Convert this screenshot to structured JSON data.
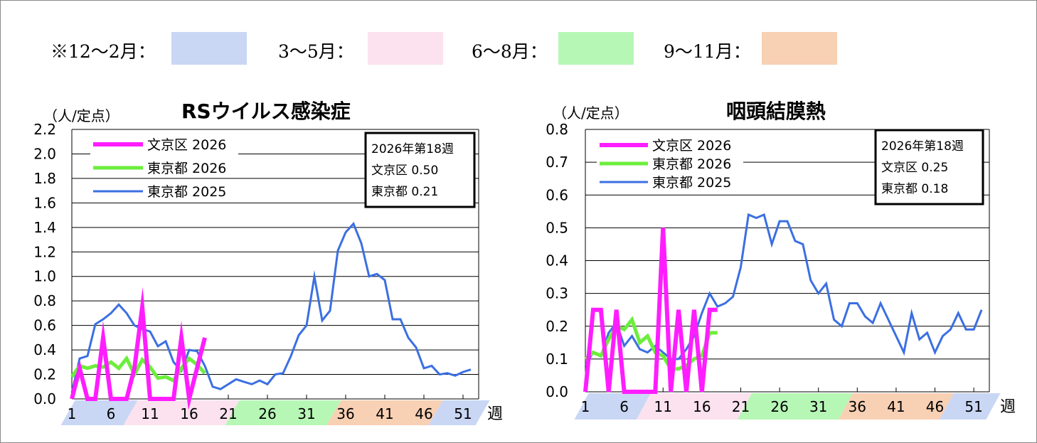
{
  "season_legend": [
    {
      "label": "※12～2月：",
      "color": "#c9d7f5"
    },
    {
      "label": "3～5月：",
      "color": "#fbe2ee"
    },
    {
      "label": "6～8月：",
      "color": "#b7f7b6"
    },
    {
      "label": "9～11月：",
      "color": "#f8d0b4"
    }
  ],
  "week_unit": "週",
  "chart_data": [
    {
      "type": "line",
      "title": "RSウイルス感染症",
      "ylabel": "（人/定点）",
      "ylim": [
        0,
        2.2
      ],
      "yticks": [
        "0.0",
        "0.2",
        "0.4",
        "0.6",
        "0.8",
        "1.0",
        "1.2",
        "1.4",
        "1.6",
        "1.8",
        "2.0",
        "2.2"
      ],
      "xlim": [
        1,
        53
      ],
      "xticks": [
        1,
        6,
        11,
        16,
        21,
        26,
        31,
        36,
        41,
        46,
        51
      ],
      "season_bands": [
        {
          "from": 1,
          "to": 8,
          "season": 0
        },
        {
          "from": 9,
          "to": 21,
          "season": 1
        },
        {
          "from": 22,
          "to": 34,
          "season": 2
        },
        {
          "from": 35,
          "to": 47,
          "season": 3
        },
        {
          "from": 48,
          "to": 53,
          "season": 0
        }
      ],
      "info_box": [
        "2026年第18週",
        "文京区  0.50",
        "東京都  0.21"
      ],
      "series": [
        {
          "name": "文京区 2026",
          "color": "#ff1dff",
          "width": 6,
          "x": [
            1,
            2,
            3,
            4,
            5,
            6,
            7,
            8,
            9,
            10,
            11,
            12,
            13,
            14,
            15,
            16,
            17,
            18
          ],
          "y": [
            0,
            0.25,
            0,
            0,
            0.5,
            0,
            0,
            0,
            0.25,
            0.75,
            0,
            0,
            0,
            0,
            0.5,
            0,
            0.25,
            0.5
          ]
        },
        {
          "name": "東京都 2026",
          "color": "#6cee3c",
          "width": 5,
          "x": [
            1,
            2,
            3,
            4,
            5,
            6,
            7,
            8,
            9,
            10,
            11,
            12,
            13,
            14,
            15,
            16,
            17,
            18
          ],
          "y": [
            0.18,
            0.27,
            0.25,
            0.27,
            0.26,
            0.3,
            0.25,
            0.33,
            0.2,
            0.32,
            0.26,
            0.17,
            0.18,
            0.15,
            0.25,
            0.33,
            0.28,
            0.21
          ]
        },
        {
          "name": "東京都 2025",
          "color": "#3b6fe2",
          "width": 3,
          "x": [
            1,
            2,
            3,
            4,
            5,
            6,
            7,
            8,
            9,
            10,
            11,
            12,
            13,
            14,
            15,
            16,
            17,
            18,
            19,
            20,
            21,
            22,
            23,
            24,
            25,
            26,
            27,
            28,
            29,
            30,
            31,
            32,
            33,
            34,
            35,
            36,
            37,
            38,
            39,
            40,
            41,
            42,
            43,
            44,
            45,
            46,
            47,
            48,
            49,
            50,
            51,
            52
          ],
          "y": [
            0.05,
            0.33,
            0.35,
            0.61,
            0.65,
            0.7,
            0.77,
            0.7,
            0.6,
            0.57,
            0.55,
            0.43,
            0.47,
            0.3,
            0.23,
            0.4,
            0.39,
            0.27,
            0.1,
            0.08,
            0.12,
            0.16,
            0.14,
            0.12,
            0.15,
            0.12,
            0.2,
            0.21,
            0.35,
            0.52,
            0.6,
            1.0,
            0.64,
            0.72,
            1.21,
            1.36,
            1.43,
            1.27,
            1.0,
            1.02,
            0.97,
            0.65,
            0.65,
            0.5,
            0.42,
            0.25,
            0.27,
            0.2,
            0.21,
            0.19,
            0.22,
            0.24
          ]
        }
      ]
    },
    {
      "type": "line",
      "title": "咽頭結膜熱",
      "ylabel": "（人/定点）",
      "ylim": [
        0,
        0.8
      ],
      "yticks": [
        "0.0",
        "0.1",
        "0.2",
        "0.3",
        "0.4",
        "0.5",
        "0.6",
        "0.7",
        "0.8"
      ],
      "xlim": [
        1,
        53
      ],
      "xticks": [
        1,
        6,
        11,
        16,
        21,
        26,
        31,
        36,
        41,
        46,
        51
      ],
      "season_bands": [
        {
          "from": 1,
          "to": 8,
          "season": 0
        },
        {
          "from": 9,
          "to": 21,
          "season": 1
        },
        {
          "from": 22,
          "to": 34,
          "season": 2
        },
        {
          "from": 35,
          "to": 47,
          "season": 3
        },
        {
          "from": 48,
          "to": 53,
          "season": 0
        }
      ],
      "info_box": [
        "2026年第18週",
        "文京区  0.25",
        "東京都  0.18"
      ],
      "series": [
        {
          "name": "文京区 2026",
          "color": "#ff1dff",
          "width": 6,
          "x": [
            1,
            2,
            3,
            4,
            5,
            6,
            7,
            8,
            9,
            10,
            11,
            12,
            13,
            14,
            15,
            16,
            17,
            18
          ],
          "y": [
            0,
            0.25,
            0.25,
            0,
            0.25,
            0,
            0,
            0,
            0,
            0,
            0.5,
            0,
            0.25,
            0,
            0.25,
            0,
            0.25,
            0.25
          ]
        },
        {
          "name": "東京都 2026",
          "color": "#6cee3c",
          "width": 5,
          "x": [
            1,
            2,
            3,
            4,
            5,
            6,
            7,
            8,
            9,
            10,
            11,
            12,
            13,
            14,
            15,
            16,
            17,
            18
          ],
          "y": [
            0.1,
            0.12,
            0.11,
            0.16,
            0.2,
            0.19,
            0.22,
            0.15,
            0.17,
            0.12,
            0.11,
            0.07,
            0.07,
            0.08,
            0.1,
            0.11,
            0.18,
            0.18
          ]
        },
        {
          "name": "東京都 2025",
          "color": "#3b6fe2",
          "width": 3,
          "x": [
            1,
            2,
            3,
            4,
            5,
            6,
            7,
            8,
            9,
            10,
            11,
            12,
            13,
            14,
            15,
            16,
            17,
            18,
            19,
            20,
            21,
            22,
            23,
            24,
            25,
            26,
            27,
            28,
            29,
            30,
            31,
            32,
            33,
            34,
            35,
            36,
            37,
            38,
            39,
            40,
            41,
            42,
            43,
            44,
            45,
            46,
            47,
            48,
            49,
            50,
            51,
            52
          ],
          "y": [
            0.08,
            0.12,
            0.11,
            0.18,
            0.21,
            0.14,
            0.17,
            0.13,
            0.12,
            0.14,
            0.12,
            0.1,
            0.1,
            0.13,
            0.17,
            0.24,
            0.3,
            0.26,
            0.27,
            0.29,
            0.38,
            0.54,
            0.53,
            0.54,
            0.45,
            0.52,
            0.52,
            0.46,
            0.45,
            0.34,
            0.3,
            0.33,
            0.22,
            0.2,
            0.27,
            0.27,
            0.23,
            0.21,
            0.27,
            0.22,
            0.17,
            0.12,
            0.24,
            0.16,
            0.18,
            0.12,
            0.17,
            0.19,
            0.24,
            0.19,
            0.19,
            0.25
          ]
        }
      ]
    }
  ]
}
